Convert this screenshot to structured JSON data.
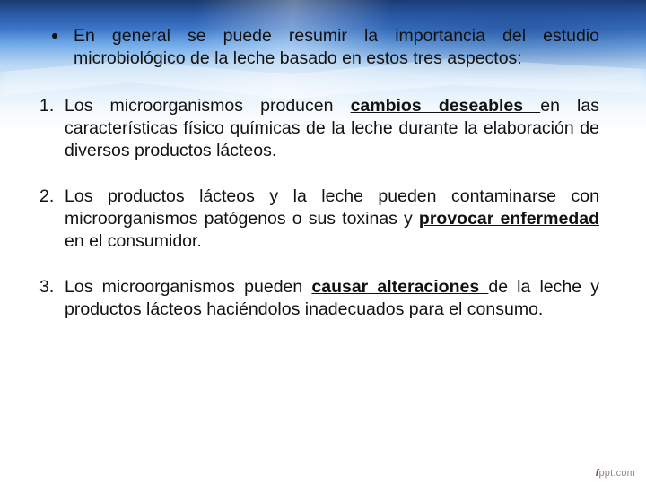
{
  "colors": {
    "text": "#111111",
    "bg_top": "#1a3a6e",
    "bg_mid": "#6ea8e8",
    "bg_white": "#ffffff"
  },
  "typography": {
    "font_family": "Arial",
    "body_fontsize_pt": 15,
    "line_height": 1.28,
    "justify": true
  },
  "intro": {
    "text_before": "En general se puede resumir la importancia del estudio microbiológico de la leche basado en estos tres aspectos:"
  },
  "items": [
    {
      "num": "1.",
      "pre": "Los microorganismos producen ",
      "emph": "cambios deseables ",
      "post": "en las características físico químicas de la leche durante la elaboración de diversos productos lácteos."
    },
    {
      "num": "2.",
      "pre": "Los productos lácteos y la leche pueden contaminarse con microorganismos patógenos o sus toxinas y ",
      "emph": "provocar enfermedad ",
      "post": "en el consumidor."
    },
    {
      "num": "3.",
      "pre": "Los microorganismos pueden ",
      "emph": "causar alteraciones ",
      "post": "de la leche y productos lácteos haciéndolos inadecuados para el consumo."
    }
  ],
  "footer": {
    "brand1": "f",
    "brand2": "ppt.com"
  }
}
